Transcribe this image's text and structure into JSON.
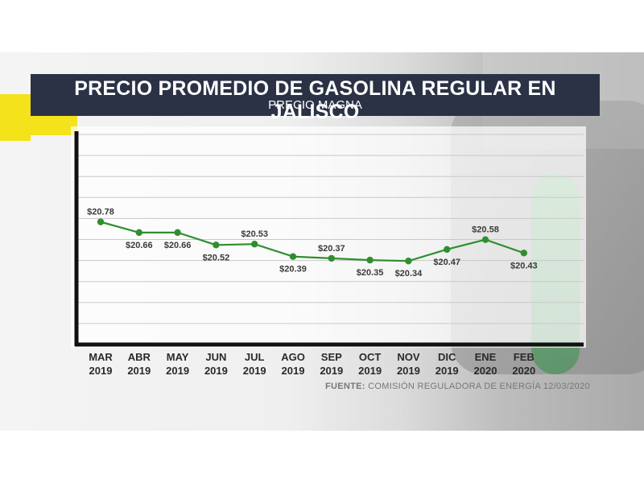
{
  "chart_data": {
    "type": "line",
    "title": "PRECIO PROMEDIO DE GASOLINA REGULAR EN JALISCO",
    "subtitle": "PRECIO MAGNA",
    "categories": [
      [
        "MAR",
        "2019"
      ],
      [
        "ABR",
        "2019"
      ],
      [
        "MAY",
        "2019"
      ],
      [
        "JUN",
        "2019"
      ],
      [
        "JUL",
        "2019"
      ],
      [
        "AGO",
        "2019"
      ],
      [
        "SEP",
        "2019"
      ],
      [
        "OCT",
        "2019"
      ],
      [
        "NOV",
        "2019"
      ],
      [
        "DIC",
        "2019"
      ],
      [
        "ENE",
        "2020"
      ],
      [
        "FEB",
        "2020"
      ]
    ],
    "series": [
      {
        "values": [
          20.78,
          20.66,
          20.66,
          20.52,
          20.53,
          20.39,
          20.37,
          20.35,
          20.34,
          20.47,
          20.58,
          20.43
        ],
        "labels": [
          "$20.78",
          "$20.66",
          "$20.66",
          "$20.52",
          "$20.53",
          "$20.39",
          "$20.37",
          "$20.35",
          "$20.34",
          "$20.47",
          "$20.58",
          "$20.43"
        ],
        "label_position": [
          "above",
          "below",
          "below",
          "below",
          "above",
          "below",
          "above",
          "below",
          "below",
          "below",
          "above",
          "below"
        ],
        "color": "#2f8f2f"
      }
    ],
    "ylim": [
      19.4,
      21.8
    ],
    "grid": true,
    "xlabel": "",
    "ylabel": ""
  },
  "source": {
    "label": "FUENTE:",
    "text": "COMISIÓN REGULADORA DE ENERGÍA 12/03/2020"
  },
  "colors": {
    "header_bg": "#2b3246",
    "accent_yellow": "#f4e21a",
    "line": "#2f8f2f"
  }
}
